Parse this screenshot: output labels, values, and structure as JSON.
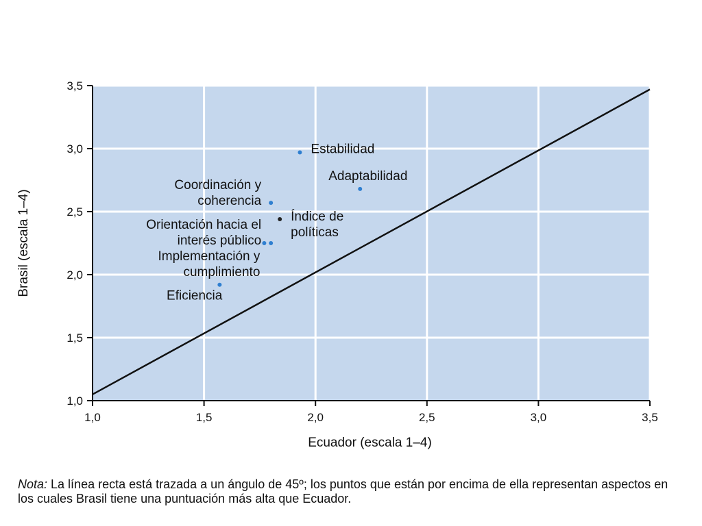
{
  "chart_data": {
    "type": "scatter",
    "xlabel": "Ecuador (escala 1–4)",
    "ylabel": "Brasil (escala 1–4)",
    "xlim": [
      1.0,
      3.5
    ],
    "ylim": [
      1.0,
      3.5
    ],
    "xticks": [
      "1,0",
      "1,5",
      "2,0",
      "2,5",
      "3,0",
      "3,5"
    ],
    "yticks": [
      "1,0",
      "1,5",
      "2,0",
      "2,5",
      "3,0",
      "3,5"
    ],
    "grid": true,
    "reference_line": {
      "from": [
        1.0,
        1.05
      ],
      "to": [
        3.5,
        3.47
      ]
    },
    "colors": {
      "plot_background": "#c5d7ed",
      "grid": "#ffffff",
      "points": "#2f7fd0",
      "index_point": "#222222",
      "line": "#111111"
    },
    "points": [
      {
        "lines": [
          "Estabilidad"
        ],
        "x": 1.93,
        "y": 2.97
      },
      {
        "lines": [
          "Adaptabilidad"
        ],
        "x": 2.2,
        "y": 2.68
      },
      {
        "lines": [
          "Coordinación y",
          "coherencia"
        ],
        "x": 1.8,
        "y": 2.57
      },
      {
        "lines": [
          "Índice de",
          "políticas"
        ],
        "x": 1.84,
        "y": 2.44
      },
      {
        "lines": [
          "Orientación hacia el",
          "interés público"
        ],
        "x": 1.8,
        "y": 2.25
      },
      {
        "lines": [
          "Implementación y",
          "cumplimiento"
        ],
        "x": 1.77,
        "y": 2.25
      },
      {
        "lines": [
          "Eficiencia"
        ],
        "x": 1.57,
        "y": 1.92
      }
    ]
  },
  "note": {
    "label": "Nota:",
    "text": " La línea recta está trazada a un ángulo de 45º; los puntos que están por encima de ella representan aspectos en los cuales Brasil tiene una puntuación más alta que Ecuador."
  }
}
